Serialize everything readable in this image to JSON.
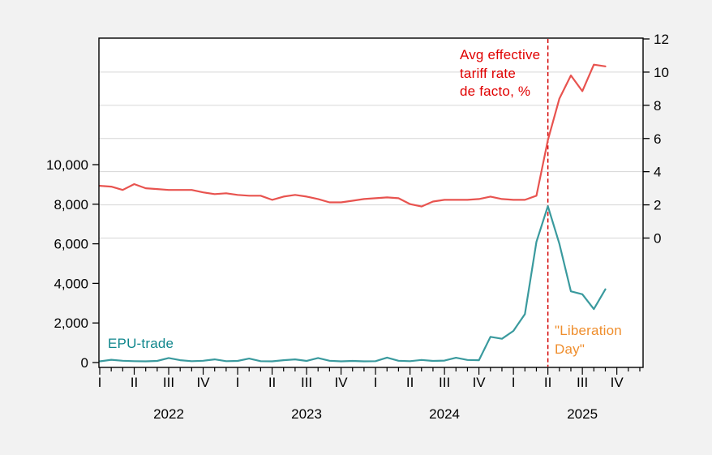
{
  "chart": {
    "left_axis_labels": [
      "0",
      "2,000",
      "4,000",
      "6,000",
      "8,000",
      "10,000"
    ],
    "left_axis_values": [
      0,
      2000,
      4000,
      6000,
      8000,
      10000
    ],
    "right_axis_labels": [
      "0",
      "2",
      "4",
      "6",
      "8",
      "10",
      "12"
    ],
    "right_axis_values": [
      0,
      2,
      4,
      6,
      8,
      10,
      12
    ],
    "quarter_labels": [
      "I",
      "II",
      "III",
      "IV"
    ],
    "years": [
      "2022",
      "2023",
      "2024",
      "2025"
    ],
    "annotations": {
      "tariff_label": {
        "lines": [
          "Avg effective",
          "tariff rate",
          "de facto, %"
        ],
        "color": "#e00000"
      },
      "epu_label": {
        "text": "EPU-trade",
        "color": "#0f868c"
      },
      "liberation_label": {
        "lines": [
          "\"Liberation",
          "Day\""
        ],
        "color": "#ef8e2d"
      }
    },
    "colors": {
      "page_bg": "#f2f2f2",
      "plot_bg": "#ffffff",
      "axis": "#000000",
      "grid": "#d6d6d6",
      "epu_line": "#3a9a9e",
      "tariff_line": "#e8534f",
      "liberation_line": "#d40000"
    }
  },
  "chart_data": {
    "type": "line",
    "title": "",
    "x_unit": "month",
    "x_start": "2022-01",
    "x_end": "2025-09",
    "x_tick_labels": "quarters I-IV with year labels 2022-2025",
    "left_ylabel": "",
    "right_ylabel": "",
    "left_ylim": [
      0,
      16400
    ],
    "right_ylim": [
      -7.8,
      12
    ],
    "grid": "horizontal, aligned to right axis every 2 units",
    "liberation_day_x": "2025-04",
    "series": [
      {
        "name": "EPU-trade",
        "axis": "left",
        "color": "#3a9a9e",
        "values": [
          60,
          140,
          90,
          70,
          60,
          80,
          230,
          120,
          70,
          90,
          160,
          70,
          80,
          200,
          70,
          60,
          120,
          160,
          80,
          230,
          90,
          60,
          80,
          60,
          70,
          250,
          90,
          70,
          130,
          80,
          100,
          240,
          130,
          120,
          1300,
          1200,
          1600,
          2450,
          6100,
          7900,
          6000,
          3600,
          3450,
          2700,
          3700
        ]
      },
      {
        "name": "Avg effective tariff rate de facto, %",
        "axis": "right",
        "color": "#e8534f",
        "values": [
          3.15,
          3.1,
          2.9,
          3.25,
          3.0,
          2.95,
          2.9,
          2.9,
          2.9,
          2.75,
          2.65,
          2.7,
          2.6,
          2.55,
          2.55,
          2.3,
          2.5,
          2.6,
          2.5,
          2.35,
          2.15,
          2.15,
          2.25,
          2.35,
          2.4,
          2.45,
          2.4,
          2.05,
          1.9,
          2.2,
          2.3,
          2.3,
          2.3,
          2.35,
          2.5,
          2.35,
          2.3,
          2.3,
          2.55,
          5.9,
          8.4,
          9.8,
          8.85,
          10.45,
          10.35
        ]
      }
    ]
  }
}
